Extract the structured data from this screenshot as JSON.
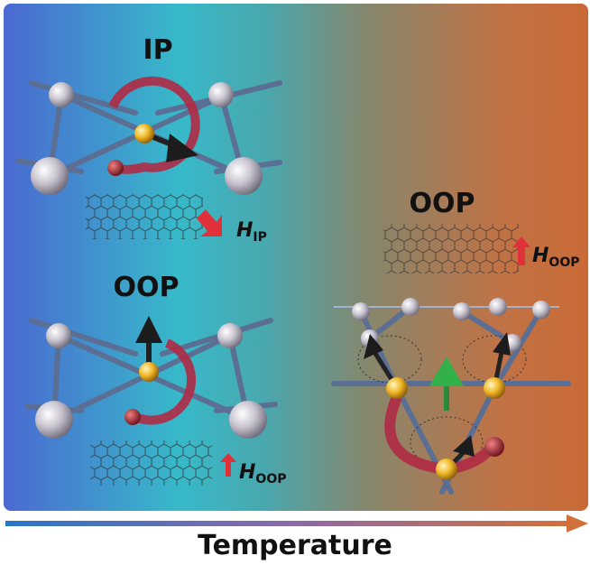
{
  "panels": [
    {
      "label": "IP",
      "field": {
        "symbol": "H",
        "subscript": "IP"
      }
    },
    {
      "label": "OOP",
      "field": {
        "symbol": "H",
        "subscript": "OOP"
      }
    },
    {
      "label": "OOP",
      "field": {
        "symbol": "H",
        "subscript": "OOP"
      }
    }
  ],
  "axis": {
    "label": "Temperature"
  }
}
